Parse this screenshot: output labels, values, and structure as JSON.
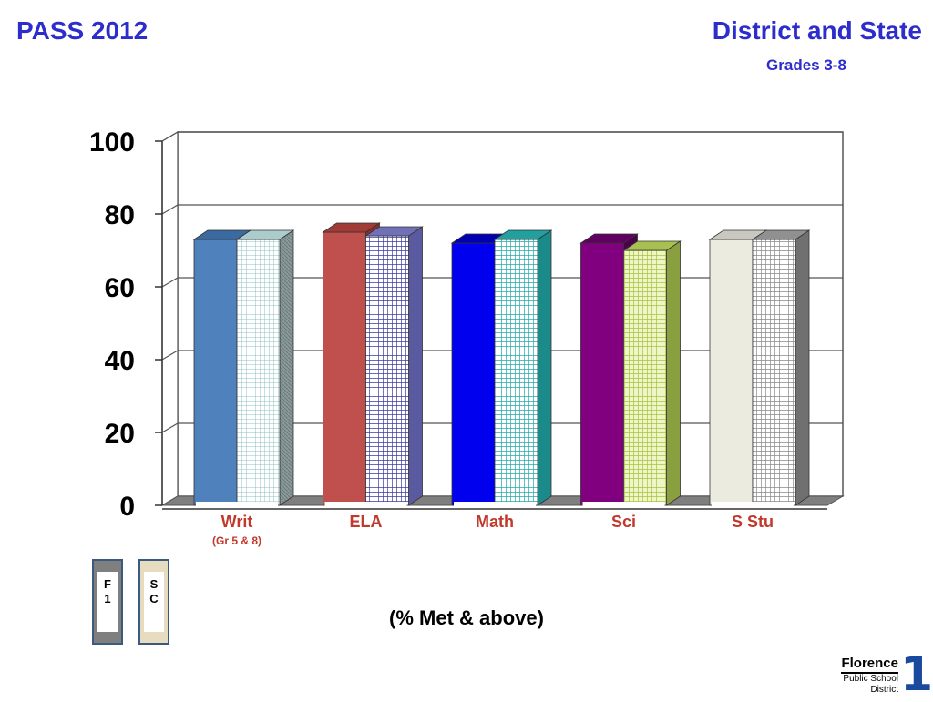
{
  "header": {
    "left_title": "PASS 2012",
    "right_title": "District and State",
    "right_subtitle": "Grades 3-8"
  },
  "chart_data": {
    "type": "bar",
    "categories": [
      "Writ",
      "ELA",
      "Math",
      "Sci",
      "S Stu"
    ],
    "category_sublabels": [
      "(Gr 5 & 8)",
      "",
      "",
      "",
      ""
    ],
    "series": [
      {
        "name": "F1",
        "values": [
          73,
          75,
          72,
          72,
          73
        ]
      },
      {
        "name": "SC",
        "values": [
          73,
          74,
          73,
          70,
          73
        ]
      }
    ],
    "ylim": [
      0,
      100
    ],
    "yticks": [
      0,
      20,
      40,
      60,
      80,
      100
    ],
    "grid": true,
    "colors": {
      "F1": [
        "#4f81bd",
        "#c0504d",
        "#0000ee",
        "#800080",
        "#ecebe0"
      ],
      "SC": [
        "#c8e8e8",
        "#9090cc",
        "#33bfbf",
        "#c8dc70",
        "#c0c0c0"
      ]
    }
  },
  "legend": {
    "items": [
      {
        "label_line1": "F",
        "label_line2": "1"
      },
      {
        "label_line1": "S",
        "label_line2": "C"
      }
    ]
  },
  "footer": {
    "note": "(% Met & above)"
  },
  "logo": {
    "name": "Florence",
    "line1": "Public School",
    "line2": "District",
    "numeral": "1"
  }
}
